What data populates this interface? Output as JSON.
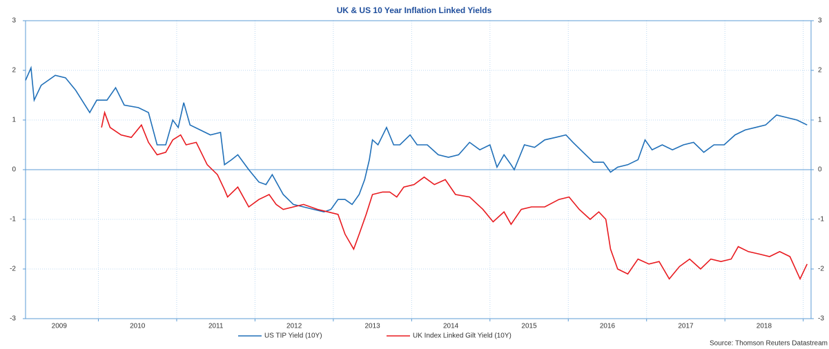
{
  "chart_data": {
    "type": "line",
    "title": "UK & US 10 Year Inflation Linked Yields",
    "source": "Source: Thomson Reuters Datastream",
    "xlim": [
      2009.07,
      2019.1
    ],
    "xticks": [
      {
        "value": 2009.5,
        "label": "2009"
      },
      {
        "value": 2010.5,
        "label": "2010"
      },
      {
        "value": 2011.5,
        "label": "2011"
      },
      {
        "value": 2012.5,
        "label": "2012"
      },
      {
        "value": 2013.5,
        "label": "2013"
      },
      {
        "value": 2014.5,
        "label": "2014"
      },
      {
        "value": 2015.5,
        "label": "2015"
      },
      {
        "value": 2016.5,
        "label": "2016"
      },
      {
        "value": 2017.5,
        "label": "2017"
      },
      {
        "value": 2018.5,
        "label": "2018"
      }
    ],
    "xgrid": [
      2010,
      2011,
      2012,
      2013,
      2014,
      2015,
      2016,
      2017,
      2018,
      2019
    ],
    "ylim": [
      -3,
      3
    ],
    "yticks": [
      -3,
      -2,
      -1,
      0,
      1,
      2,
      3
    ],
    "grid": true,
    "legend": "bottom",
    "series": [
      {
        "name": "US TIP Yield (10Y)",
        "color": "#1f6fb8",
        "x": [
          2009.07,
          2009.14,
          2009.18,
          2009.27,
          2009.45,
          2009.58,
          2009.71,
          2009.89,
          2009.98,
          2010.11,
          2010.22,
          2010.33,
          2010.51,
          2010.64,
          2010.75,
          2010.86,
          2010.95,
          2011.02,
          2011.09,
          2011.17,
          2011.3,
          2011.43,
          2011.56,
          2011.61,
          2011.7,
          2011.78,
          2011.92,
          2012.05,
          2012.14,
          2012.22,
          2012.36,
          2012.49,
          2012.62,
          2012.75,
          2012.88,
          2012.97,
          2013.06,
          2013.15,
          2013.24,
          2013.33,
          2013.4,
          2013.46,
          2013.5,
          2013.57,
          2013.68,
          2013.77,
          2013.85,
          2013.98,
          2014.07,
          2014.2,
          2014.34,
          2014.47,
          2014.6,
          2014.74,
          2014.87,
          2015.0,
          2015.09,
          2015.18,
          2015.27,
          2015.31,
          2015.44,
          2015.57,
          2015.7,
          2015.84,
          2015.97,
          2016.06,
          2016.19,
          2016.32,
          2016.45,
          2016.54,
          2016.63,
          2016.76,
          2016.89,
          2016.98,
          2017.07,
          2017.2,
          2017.33,
          2017.47,
          2017.6,
          2017.73,
          2017.86,
          2017.99,
          2018.13,
          2018.26,
          2018.39,
          2018.52,
          2018.66,
          2018.79,
          2018.92,
          2019.05
        ],
        "values": [
          1.8,
          2.05,
          1.4,
          1.7,
          1.9,
          1.85,
          1.6,
          1.15,
          1.4,
          1.4,
          1.65,
          1.3,
          1.25,
          1.15,
          0.5,
          0.5,
          1.0,
          0.85,
          1.35,
          0.9,
          0.8,
          0.7,
          0.75,
          0.1,
          0.2,
          0.3,
          0.0,
          -0.25,
          -0.3,
          -0.1,
          -0.5,
          -0.7,
          -0.75,
          -0.8,
          -0.85,
          -0.8,
          -0.6,
          -0.6,
          -0.7,
          -0.5,
          -0.2,
          0.2,
          0.6,
          0.5,
          0.85,
          0.5,
          0.5,
          0.7,
          0.5,
          0.5,
          0.3,
          0.25,
          0.3,
          0.55,
          0.4,
          0.5,
          0.05,
          0.3,
          0.1,
          0.0,
          0.5,
          0.45,
          0.6,
          0.65,
          0.7,
          0.55,
          0.35,
          0.15,
          0.15,
          -0.05,
          0.05,
          0.1,
          0.2,
          0.6,
          0.4,
          0.5,
          0.4,
          0.5,
          0.55,
          0.35,
          0.5,
          0.5,
          0.7,
          0.8,
          0.85,
          0.9,
          1.1,
          1.05,
          1.0,
          0.9
        ]
      },
      {
        "name": "UK Index Linked Gilt Yield (10Y)",
        "color": "#e8191e",
        "x": [
          2010.04,
          2010.08,
          2010.15,
          2010.29,
          2010.42,
          2010.55,
          2010.64,
          2010.75,
          2010.86,
          2010.95,
          2011.05,
          2011.12,
          2011.25,
          2011.39,
          2011.52,
          2011.61,
          2011.65,
          2011.78,
          2011.92,
          2012.05,
          2012.18,
          2012.27,
          2012.36,
          2012.49,
          2012.62,
          2012.8,
          2012.93,
          2013.06,
          2013.15,
          2013.26,
          2013.33,
          2013.42,
          2013.5,
          2013.63,
          2013.72,
          2013.81,
          2013.9,
          2014.03,
          2014.16,
          2014.29,
          2014.43,
          2014.56,
          2014.74,
          2014.91,
          2015.04,
          2015.18,
          2015.27,
          2015.4,
          2015.53,
          2015.7,
          2015.88,
          2016.01,
          2016.14,
          2016.28,
          2016.39,
          2016.48,
          2016.54,
          2016.63,
          2016.76,
          2016.89,
          2017.03,
          2017.16,
          2017.29,
          2017.42,
          2017.55,
          2017.69,
          2017.82,
          2017.95,
          2018.08,
          2018.17,
          2018.3,
          2018.44,
          2018.57,
          2018.7,
          2018.83,
          2018.96,
          2019.05
        ],
        "values": [
          0.85,
          1.15,
          0.85,
          0.7,
          0.65,
          0.9,
          0.55,
          0.3,
          0.35,
          0.6,
          0.7,
          0.5,
          0.55,
          0.1,
          -0.1,
          -0.4,
          -0.55,
          -0.35,
          -0.75,
          -0.6,
          -0.5,
          -0.7,
          -0.8,
          -0.75,
          -0.7,
          -0.8,
          -0.85,
          -0.9,
          -1.3,
          -1.6,
          -1.3,
          -0.9,
          -0.5,
          -0.45,
          -0.45,
          -0.55,
          -0.35,
          -0.3,
          -0.15,
          -0.3,
          -0.2,
          -0.5,
          -0.55,
          -0.8,
          -1.05,
          -0.85,
          -1.1,
          -0.8,
          -0.75,
          -0.75,
          -0.6,
          -0.55,
          -0.8,
          -1.0,
          -0.85,
          -1.0,
          -1.6,
          -2.0,
          -2.1,
          -1.8,
          -1.9,
          -1.85,
          -2.2,
          -1.95,
          -1.8,
          -2.0,
          -1.8,
          -1.85,
          -1.8,
          -1.55,
          -1.65,
          -1.7,
          -1.75,
          -1.65,
          -1.75,
          -2.2,
          -1.9
        ]
      }
    ]
  }
}
